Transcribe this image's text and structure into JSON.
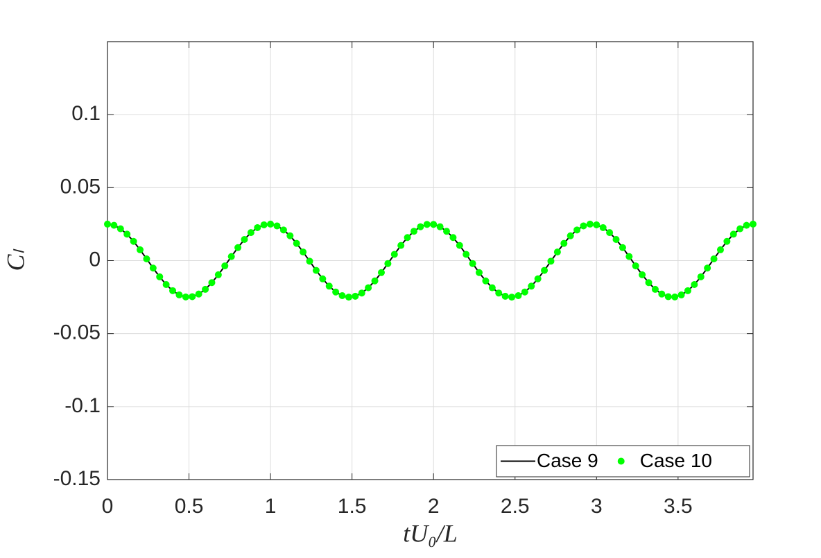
{
  "chart_data": {
    "type": "line",
    "xlabel": "tU₀/L",
    "ylabel": "Cₗ",
    "x": [
      0,
      0.04,
      0.08,
      0.12,
      0.16,
      0.2,
      0.24,
      0.28,
      0.32,
      0.36,
      0.4,
      0.44,
      0.48,
      0.52,
      0.56,
      0.6,
      0.64,
      0.68,
      0.72,
      0.76,
      0.8,
      0.84,
      0.88,
      0.92,
      0.96,
      1,
      1.04,
      1.08,
      1.12,
      1.16,
      1.2,
      1.24,
      1.28,
      1.32,
      1.36,
      1.4,
      1.44,
      1.48,
      1.52,
      1.56,
      1.6,
      1.64,
      1.68,
      1.72,
      1.76,
      1.8,
      1.84,
      1.88,
      1.92,
      1.96,
      2,
      2.04,
      2.08,
      2.12,
      2.16,
      2.2,
      2.24,
      2.28,
      2.32,
      2.36,
      2.4,
      2.44,
      2.48,
      2.52,
      2.56,
      2.6,
      2.64,
      2.68,
      2.72,
      2.76,
      2.8,
      2.84,
      2.88,
      2.92,
      2.96,
      3,
      3.04,
      3.08,
      3.12,
      3.16,
      3.2,
      3.24,
      3.28,
      3.32,
      3.36,
      3.4,
      3.44,
      3.48,
      3.52,
      3.56,
      3.6,
      3.64,
      3.68,
      3.72,
      3.76,
      3.8,
      3.84,
      3.88,
      3.92,
      3.96
    ],
    "series": [
      {
        "name": "Case 9",
        "color": "#000000",
        "mode": "line",
        "values": [
          0.025,
          0.0242,
          0.0218,
          0.0181,
          0.0132,
          0.0074,
          0.0012,
          -0.0051,
          -0.0111,
          -0.0164,
          -0.0206,
          -0.0235,
          -0.0249,
          -0.0247,
          -0.0229,
          -0.0197,
          -0.0151,
          -0.0097,
          -0.0036,
          0.0028,
          0.0089,
          0.0145,
          0.0192,
          0.0226,
          0.0245,
          0.025,
          0.0238,
          0.021,
          0.017,
          0.0118,
          0.0059,
          -0.0004,
          -0.0067,
          -0.0125,
          -0.0175,
          -0.0215,
          -0.024,
          -0.025,
          -0.0244,
          -0.0222,
          -0.0186,
          -0.0139,
          -0.0082,
          -0.002,
          0.0043,
          0.0104,
          0.0158,
          0.0201,
          0.0232,
          0.0248,
          0.0248,
          0.0232,
          0.0201,
          0.0158,
          0.0104,
          0.0043,
          -0.002,
          -0.0082,
          -0.0139,
          -0.0186,
          -0.0222,
          -0.0244,
          -0.025,
          -0.024,
          -0.0215,
          -0.0175,
          -0.0125,
          -0.0067,
          -0.0004,
          0.0059,
          0.0118,
          0.017,
          0.021,
          0.0238,
          0.025,
          0.0245,
          0.0226,
          0.0192,
          0.0145,
          0.0089,
          0.0028,
          -0.0036,
          -0.0097,
          -0.0151,
          -0.0197,
          -0.0229,
          -0.0247,
          -0.0249,
          -0.0235,
          -0.0206,
          -0.0164,
          -0.0111,
          -0.0051,
          0.0012,
          0.0074,
          0.0132,
          0.0181,
          0.0218,
          0.0242,
          0.025
        ]
      },
      {
        "name": "Case 10",
        "color": "#00ff00",
        "mode": "markers",
        "values": [
          0.025,
          0.0242,
          0.0218,
          0.0181,
          0.0132,
          0.0074,
          0.0012,
          -0.0051,
          -0.0111,
          -0.0164,
          -0.0206,
          -0.0235,
          -0.0249,
          -0.0247,
          -0.0229,
          -0.0197,
          -0.0151,
          -0.0097,
          -0.0036,
          0.0028,
          0.0089,
          0.0145,
          0.0192,
          0.0226,
          0.0245,
          0.025,
          0.0238,
          0.021,
          0.017,
          0.0118,
          0.0059,
          -0.0004,
          -0.0067,
          -0.0125,
          -0.0175,
          -0.0215,
          -0.024,
          -0.025,
          -0.0244,
          -0.0222,
          -0.0186,
          -0.0139,
          -0.0082,
          -0.002,
          0.0043,
          0.0104,
          0.0158,
          0.0201,
          0.0232,
          0.0248,
          0.0248,
          0.0232,
          0.0201,
          0.0158,
          0.0104,
          0.0043,
          -0.002,
          -0.0082,
          -0.0139,
          -0.0186,
          -0.0222,
          -0.0244,
          -0.025,
          -0.024,
          -0.0215,
          -0.0175,
          -0.0125,
          -0.0067,
          -0.0004,
          0.0059,
          0.0118,
          0.017,
          0.021,
          0.0238,
          0.025,
          0.0245,
          0.0226,
          0.0192,
          0.0145,
          0.0089,
          0.0028,
          -0.0036,
          -0.0097,
          -0.0151,
          -0.0197,
          -0.0229,
          -0.0247,
          -0.0249,
          -0.0235,
          -0.0206,
          -0.0164,
          -0.0111,
          -0.0051,
          0.0012,
          0.0074,
          0.0132,
          0.0181,
          0.0218,
          0.0242,
          0.025
        ]
      }
    ],
    "xlim": [
      0,
      3.96
    ],
    "ylim": [
      -0.15,
      0.15
    ],
    "xticks": [
      0,
      0.5,
      1,
      1.5,
      2,
      2.5,
      3,
      3.5
    ],
    "yticks": [
      -0.15,
      -0.1,
      -0.05,
      0,
      0.05,
      0.1
    ],
    "grid": true,
    "legend": "lower right"
  }
}
